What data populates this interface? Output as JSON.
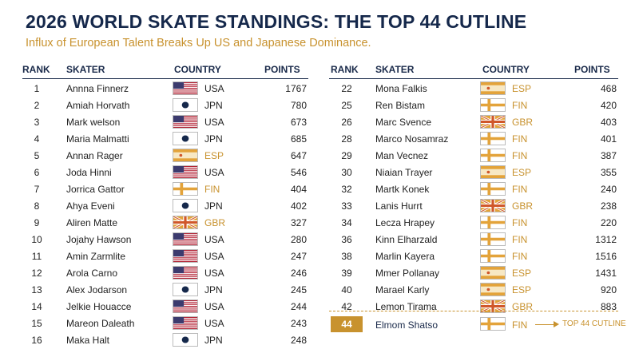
{
  "title": "2026 WORLD SKATE STANDINGS: THE TOP 44 CUTLINE",
  "subtitle": "Influx of European Talent Breaks Up US and Japanese Dominance.",
  "columns": {
    "rank": "RANK",
    "skater": "SKATER",
    "country": "COUNTRY",
    "points": "POINTS"
  },
  "colors": {
    "navy": "#15284b",
    "gold": "#c8922e"
  },
  "left_rows": [
    {
      "rank": "1",
      "name": "Annna Finnerz",
      "country": "USA",
      "points": "1767"
    },
    {
      "rank": "2",
      "name": "Amiah Horvath",
      "country": "JPN",
      "points": "780"
    },
    {
      "rank": "3",
      "name": "Mark welson",
      "country": "USA",
      "points": "673"
    },
    {
      "rank": "4",
      "name": "Maria Malmatti",
      "country": "JPN",
      "points": "685"
    },
    {
      "rank": "5",
      "name": "Annan Rager",
      "country": "ESP",
      "points": "647"
    },
    {
      "rank": "6",
      "name": "Joda Hinni",
      "country": "USA",
      "points": "546"
    },
    {
      "rank": "7",
      "name": "Jorrica Gattor",
      "country": "FIN",
      "points": "404"
    },
    {
      "rank": "8",
      "name": "Ahya Eveni",
      "country": "JPN",
      "points": "402"
    },
    {
      "rank": "9",
      "name": "Aliren Matte",
      "country": "GBR",
      "points": "327"
    },
    {
      "rank": "10",
      "name": "Jojahy Hawson",
      "country": "USA",
      "points": "280"
    },
    {
      "rank": "11",
      "name": "Amin Zarmlite",
      "country": "USA",
      "points": "247"
    },
    {
      "rank": "12",
      "name": "Arola Carno",
      "country": "USA",
      "points": "246"
    },
    {
      "rank": "13",
      "name": "Alex Jodarson",
      "country": "JPN",
      "points": "245"
    },
    {
      "rank": "14",
      "name": "Jelkie Houacce",
      "country": "USA",
      "points": "244"
    },
    {
      "rank": "15",
      "name": "Mareon Daleath",
      "country": "USA",
      "points": "243"
    },
    {
      "rank": "16",
      "name": "Maka Halt",
      "country": "JPN",
      "points": "248"
    }
  ],
  "right_rows": [
    {
      "rank": "22",
      "name": "Mona Falkis",
      "country": "ESP",
      "points": "468"
    },
    {
      "rank": "25",
      "name": "Ren Bistam",
      "country": "FIN",
      "points": "420"
    },
    {
      "rank": "26",
      "name": "Marc Svence",
      "country": "GBR",
      "points": "403"
    },
    {
      "rank": "28",
      "name": "Marco Nosamraz",
      "country": "FIN",
      "points": "401"
    },
    {
      "rank": "29",
      "name": "Man Vecnez",
      "country": "FIN",
      "points": "387"
    },
    {
      "rank": "30",
      "name": "Niaian Trayer",
      "country": "ESP",
      "points": "355"
    },
    {
      "rank": "32",
      "name": "Martk Konek",
      "country": "FIN",
      "points": "240"
    },
    {
      "rank": "33",
      "name": "Lanis Hurrt",
      "country": "GBR",
      "points": "238"
    },
    {
      "rank": "34",
      "name": "Lecza Hrapey",
      "country": "FIN",
      "points": "220"
    },
    {
      "rank": "36",
      "name": "Kinn Elharzald",
      "country": "FIN",
      "points": "1312"
    },
    {
      "rank": "38",
      "name": "Marlin Kayera",
      "country": "FIN",
      "points": "1516"
    },
    {
      "rank": "39",
      "name": "Mmer Pollanay",
      "country": "ESP",
      "points": "1431"
    },
    {
      "rank": "40",
      "name": "Marael Karly",
      "country": "ESP",
      "points": "920"
    },
    {
      "rank": "42",
      "name": "Lemon Tirama",
      "country": "GBR",
      "points": "883"
    }
  ],
  "cutline": {
    "rank": "44",
    "name": "Elmom Shatso",
    "country": "FIN",
    "label": "TOP 44 CUTLINE"
  }
}
